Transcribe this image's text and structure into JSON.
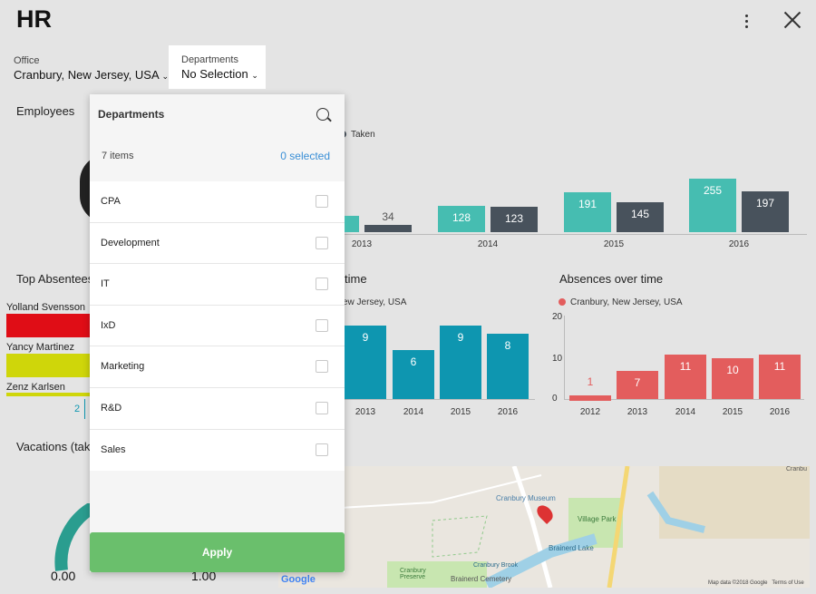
{
  "header": {
    "title": "HR"
  },
  "filters": {
    "office_label": "Office",
    "office_value": "Cranbury, New Jersey, USA",
    "dept_label": "Departments",
    "dept_value": "No Selection"
  },
  "sections": {
    "employees": "Employees",
    "top_absentees": "Top Absentees",
    "absences_by_dept_partial": "time",
    "absences_over_time": "Absences over time",
    "vacations": "Vacations (take"
  },
  "vacation_chart": {
    "legend_taken": "Taken",
    "chart_data": {
      "type": "bar",
      "categories": [
        "2013",
        "2014",
        "2015",
        "2016"
      ],
      "series": [
        {
          "name": "",
          "values": [
            null,
            128,
            191,
            255
          ],
          "color": "#46bdb1"
        },
        {
          "name": "Taken",
          "values": [
            34,
            123,
            145,
            197
          ],
          "color": "#48525c"
        }
      ]
    }
  },
  "middle_chart": {
    "legend": "ew Jersey, USA",
    "chart_data": {
      "type": "bar",
      "categories": [
        "2013",
        "2014",
        "2015",
        "2016"
      ],
      "values": [
        9,
        6,
        9,
        8
      ],
      "color": "#0e96b0"
    }
  },
  "absences_chart": {
    "legend": "Cranbury, New Jersey, USA",
    "chart_data": {
      "type": "bar",
      "categories": [
        "2012",
        "2013",
        "2014",
        "2015",
        "2016"
      ],
      "values": [
        1,
        7,
        11,
        10,
        11
      ],
      "yticks": [
        "20",
        "10",
        "0"
      ],
      "ylim": [
        0,
        20
      ],
      "color": "#e35d5d"
    }
  },
  "absentees": [
    {
      "name": "Yolland Svensson",
      "color": "#e00d16"
    },
    {
      "name": "Yancy Martinez",
      "color": "#cfd60a"
    },
    {
      "name": "Zenz Karlsen",
      "color": "#cfd60a",
      "value": "2"
    }
  ],
  "gauge": {
    "min": "0.00",
    "max": "1.00"
  },
  "dropdown": {
    "title": "Departments",
    "count_text": "7 items",
    "selected_text": "0 selected",
    "items": [
      {
        "label": "CPA"
      },
      {
        "label": "Development"
      },
      {
        "label": "IT"
      },
      {
        "label": "IxD"
      },
      {
        "label": "Marketing"
      },
      {
        "label": "R&D"
      },
      {
        "label": "Sales"
      }
    ],
    "apply_label": "Apply"
  },
  "map": {
    "labels": {
      "museum": "Cranbury Museum",
      "park": "Village Park",
      "lake": "Brainerd Lake",
      "preserve": "Cranbury Preserve",
      "brook": "Cranbury Brook",
      "cemetery": "Brainerd Cemetery",
      "town": "Cranbu",
      "logo": "Google",
      "attribution": "Map data ©2018 Google",
      "terms": "Terms of Use"
    }
  }
}
